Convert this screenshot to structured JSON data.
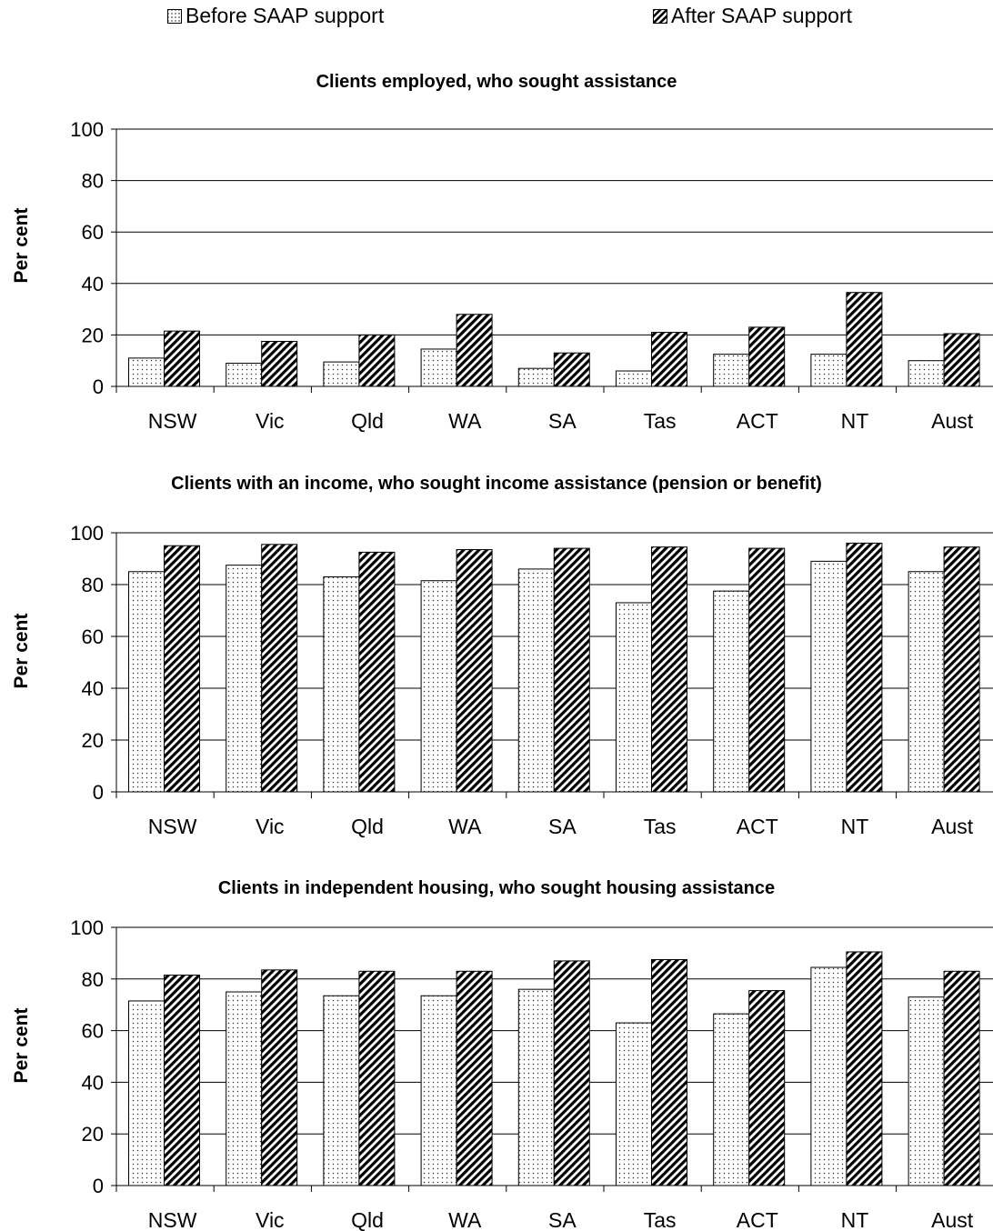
{
  "legend": {
    "before_label": "Before SAAP support",
    "after_label": "After SAAP support"
  },
  "chart_data": [
    {
      "type": "bar",
      "title": "Clients employed, who sought assistance",
      "ylabel": "Per cent",
      "xlabel": "",
      "ylim": [
        0,
        100
      ],
      "yticks": [
        0,
        20,
        40,
        60,
        80,
        100
      ],
      "grid": true,
      "legend_position": "top",
      "categories": [
        "NSW",
        "Vic",
        "Qld",
        "WA",
        "SA",
        "Tas",
        "ACT",
        "NT",
        "Aust"
      ],
      "series": [
        {
          "name": "Before SAAP support",
          "values": [
            11,
            9,
            9.5,
            14.5,
            7,
            6,
            12.5,
            12.5,
            10
          ]
        },
        {
          "name": "After SAAP support",
          "values": [
            21.5,
            17.5,
            20,
            28,
            13,
            21,
            23,
            36.5,
            20.5
          ]
        }
      ]
    },
    {
      "type": "bar",
      "title": "Clients with an income, who sought income assistance (pension or benefit)",
      "ylabel": "Per cent",
      "xlabel": "",
      "ylim": [
        0,
        100
      ],
      "yticks": [
        0,
        20,
        40,
        60,
        80,
        100
      ],
      "grid": true,
      "categories": [
        "NSW",
        "Vic",
        "Qld",
        "WA",
        "SA",
        "Tas",
        "ACT",
        "NT",
        "Aust"
      ],
      "series": [
        {
          "name": "Before SAAP support",
          "values": [
            85,
            87.5,
            83,
            81.5,
            86,
            73,
            77.5,
            89,
            85
          ]
        },
        {
          "name": "After SAAP support",
          "values": [
            95,
            95.5,
            92.5,
            93.5,
            94,
            94.5,
            94,
            96,
            94.5
          ]
        }
      ]
    },
    {
      "type": "bar",
      "title": "Clients in independent housing, who sought housing assistance",
      "ylabel": "Per cent",
      "xlabel": "",
      "ylim": [
        0,
        100
      ],
      "yticks": [
        0,
        20,
        40,
        60,
        80,
        100
      ],
      "grid": true,
      "categories": [
        "NSW",
        "Vic",
        "Qld",
        "WA",
        "SA",
        "Tas",
        "ACT",
        "NT",
        "Aust"
      ],
      "series": [
        {
          "name": "Before SAAP support",
          "values": [
            71.5,
            75,
            73.5,
            73.5,
            76,
            63,
            66.5,
            84.5,
            73
          ]
        },
        {
          "name": "After SAAP support",
          "values": [
            81.5,
            83.5,
            83,
            83,
            87,
            87.5,
            75.5,
            90.5,
            83
          ]
        }
      ]
    }
  ]
}
